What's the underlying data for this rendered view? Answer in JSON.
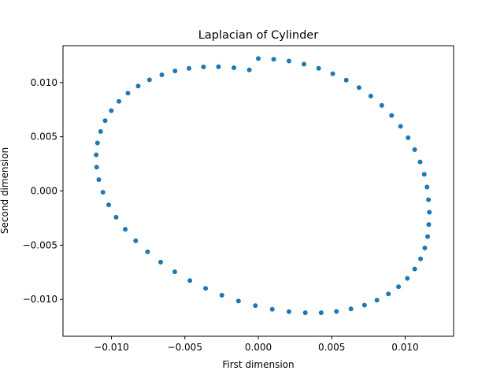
{
  "chart_data": {
    "type": "scatter",
    "title": "Laplacian of Cylinder",
    "xlabel": "First dimension",
    "ylabel": "Second dimension",
    "xlim": [
      -0.0133,
      0.0133
    ],
    "ylim": [
      -0.0134,
      0.0134
    ],
    "grid": false,
    "xticks": [
      {
        "value": -0.01,
        "label": "−0.010"
      },
      {
        "value": -0.005,
        "label": "−0.005"
      },
      {
        "value": 0.0,
        "label": "0.000"
      },
      {
        "value": 0.005,
        "label": "0.005"
      },
      {
        "value": 0.01,
        "label": "0.010"
      }
    ],
    "yticks": [
      {
        "value": -0.01,
        "label": "−0.010"
      },
      {
        "value": -0.005,
        "label": "−0.005"
      },
      {
        "value": 0.0,
        "label": "0.000"
      },
      {
        "value": 0.005,
        "label": "0.005"
      },
      {
        "value": 0.01,
        "label": "0.010"
      }
    ],
    "series": [
      {
        "color": "#1f77b4",
        "x": [
          0.0,
          0.00105,
          0.00209,
          0.00311,
          0.00411,
          0.00507,
          0.00599,
          0.00686,
          0.00766,
          0.00841,
          0.00908,
          0.00969,
          0.0102,
          0.01065,
          0.01102,
          0.0113,
          0.01149,
          0.01159,
          0.01165,
          0.01161,
          0.01153,
          0.01134,
          0.01105,
          0.01065,
          0.01015,
          0.00955,
          0.00886,
          0.00808,
          0.00723,
          0.00631,
          0.00532,
          0.00428,
          0.0032,
          0.00209,
          0.00095,
          -0.0002,
          -0.00135,
          -0.00248,
          -0.00359,
          -0.00466,
          -0.00569,
          -0.00665,
          -0.00754,
          -0.00835,
          -0.00906,
          -0.00968,
          -0.01019,
          -0.01058,
          -0.01086,
          -0.01101,
          -0.01104,
          -0.01095,
          -0.01074,
          -0.01043,
          -0.01001,
          -0.00949,
          -0.00888,
          -0.00818,
          -0.00741,
          -0.00657,
          -0.00567,
          -0.00472,
          -0.00373,
          -0.00271,
          -0.00166,
          -0.00061
        ],
        "y": [
          0.01221,
          0.01215,
          0.01198,
          0.01169,
          0.01131,
          0.01081,
          0.01022,
          0.00953,
          0.00875,
          0.00789,
          0.00696,
          0.00596,
          0.00491,
          0.00381,
          0.00268,
          0.00153,
          0.00036,
          -0.00081,
          -0.00196,
          -0.0031,
          -0.0042,
          -0.00526,
          -0.00626,
          -0.0072,
          -0.00806,
          -0.00883,
          -0.0095,
          -0.01007,
          -0.01053,
          -0.01088,
          -0.01111,
          -0.01123,
          -0.01123,
          -0.01113,
          -0.01091,
          -0.01058,
          -0.01015,
          -0.00961,
          -0.00898,
          -0.00826,
          -0.00745,
          -0.00656,
          -0.00561,
          -0.00459,
          -0.00353,
          -0.00242,
          -0.00128,
          -0.00012,
          0.00104,
          0.0022,
          0.00333,
          0.00443,
          0.00548,
          0.00648,
          0.00741,
          0.00826,
          0.00902,
          0.00968,
          0.01025,
          0.01071,
          0.01107,
          0.01131,
          0.01144,
          0.01146,
          0.01137,
          0.01117
        ]
      }
    ]
  }
}
